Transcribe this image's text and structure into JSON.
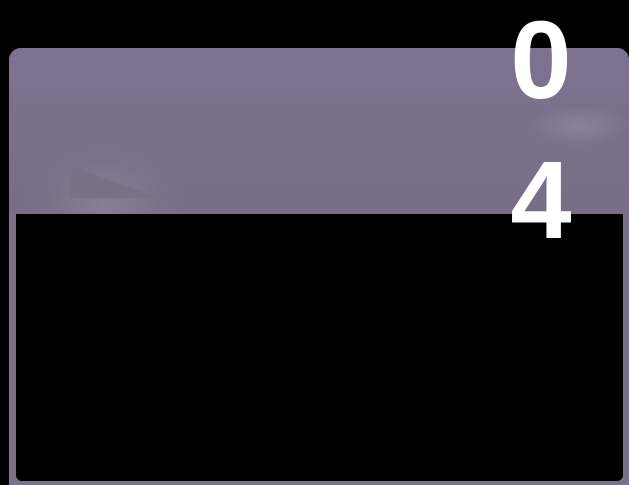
{
  "slide": {
    "number_digits": [
      "0",
      "4"
    ]
  },
  "colors": {
    "background": "#000000",
    "panel": "#7a7088",
    "text": "#ffffff"
  }
}
